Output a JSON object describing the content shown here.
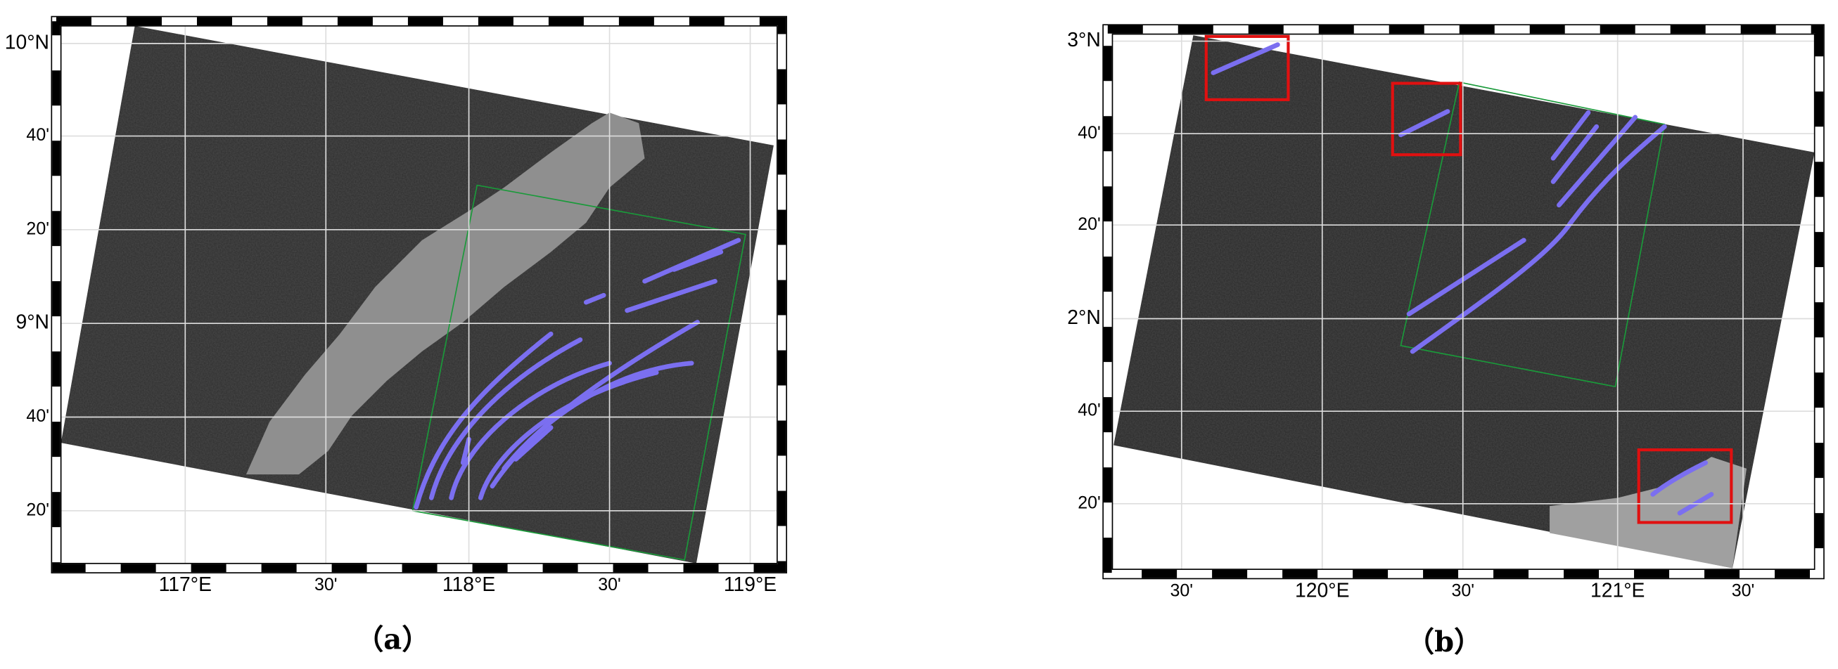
{
  "panels": [
    {
      "lat_labels": [
        "10°N",
        "40'",
        "20'",
        "9°N",
        "40'",
        "20'"
      ],
      "lon_labels": [
        "117°E",
        "30'",
        "118°E",
        "30'",
        "119°E"
      ],
      "caption": "（a）"
    },
    {
      "lat_labels": [
        "3°N",
        "40'",
        "20'",
        "2°N",
        "40'",
        "20'"
      ],
      "lon_labels": [
        "30'",
        "120°E",
        "30'",
        "121°E",
        "30'"
      ],
      "caption": "（b）"
    }
  ]
}
